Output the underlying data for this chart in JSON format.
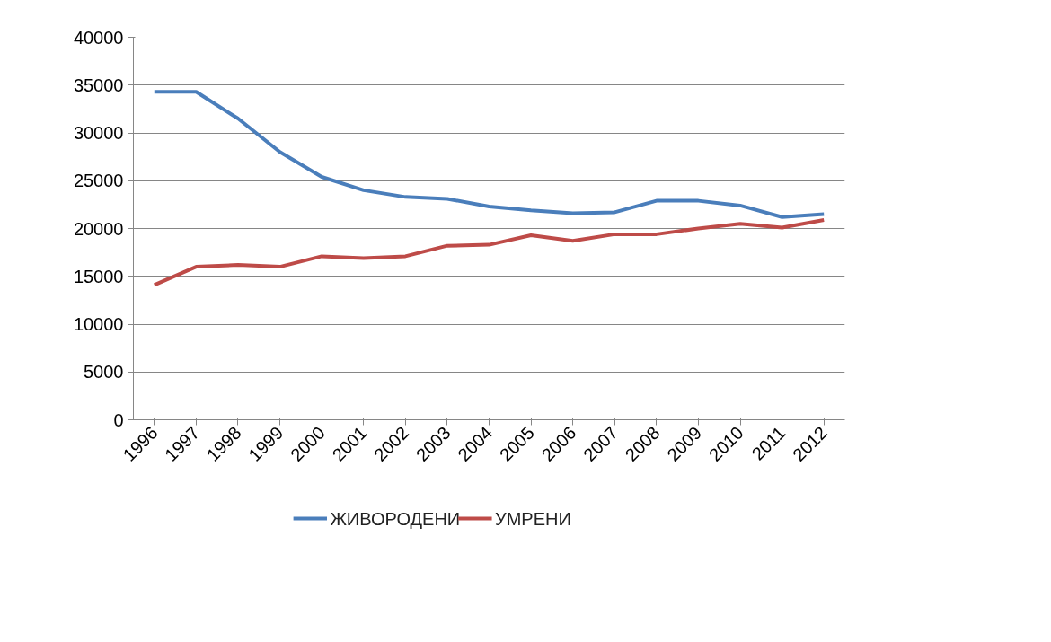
{
  "chart_data": {
    "type": "line",
    "categories": [
      "1996",
      "1997",
      "1998",
      "1999",
      "2000",
      "2001",
      "2002",
      "2003",
      "2004",
      "2005",
      "2006",
      "2007",
      "2008",
      "2009",
      "2010",
      "2011",
      "2012"
    ],
    "series": [
      {
        "name": "ЖИВОРОДЕНИ",
        "color": "#4a7ebb",
        "values": [
          34300,
          34300,
          31500,
          28000,
          25400,
          24000,
          23300,
          23100,
          22300,
          21900,
          21600,
          21700,
          22900,
          22900,
          22400,
          21200,
          21500
        ]
      },
      {
        "name": "УМРЕНИ",
        "color": "#be4b48",
        "values": [
          14100,
          16000,
          16200,
          16000,
          17100,
          16900,
          17100,
          18200,
          18300,
          19300,
          18700,
          19400,
          19400,
          20000,
          20500,
          20100,
          20900
        ]
      }
    ],
    "ylim": [
      0,
      40000
    ],
    "yticks": [
      0,
      5000,
      10000,
      15000,
      20000,
      25000,
      30000,
      35000,
      40000
    ],
    "grid": "y",
    "legend": "bottom",
    "marker": "none",
    "line_style": "solid"
  }
}
